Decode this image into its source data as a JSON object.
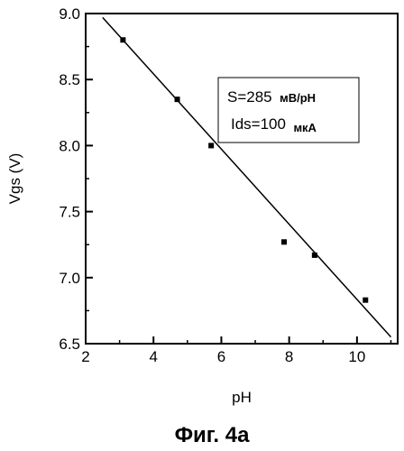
{
  "chart_data": {
    "type": "scatter",
    "title": "",
    "xlabel": "pH",
    "ylabel": "Vgs (V)",
    "xlim": [
      2,
      11.2
    ],
    "ylim": [
      6.5,
      9.0
    ],
    "xticks": [
      2,
      4,
      6,
      8,
      10
    ],
    "xtick_labels": [
      "2",
      "4",
      "6",
      "8",
      "10"
    ],
    "yticks": [
      6.5,
      7.0,
      7.5,
      8.0,
      8.5,
      9.0
    ],
    "ytick_labels": [
      "6.5",
      "7.0",
      "7.5",
      "8.0",
      "8.5",
      "9.0"
    ],
    "grid": false,
    "points": [
      {
        "x": 3.1,
        "y": 8.8
      },
      {
        "x": 4.7,
        "y": 8.35
      },
      {
        "x": 5.7,
        "y": 8.0
      },
      {
        "x": 7.85,
        "y": 7.27
      },
      {
        "x": 8.75,
        "y": 7.17
      },
      {
        "x": 10.25,
        "y": 6.83
      }
    ],
    "fit_line": {
      "x": [
        2.5,
        11.0
      ],
      "y": [
        8.97,
        6.55
      ]
    },
    "annotations": {
      "slope_main": "S=285",
      "slope_unit": "мВ/pH",
      "current_main": "Ids=100",
      "current_unit": "мкА"
    }
  },
  "caption": "Фиг. 4a"
}
